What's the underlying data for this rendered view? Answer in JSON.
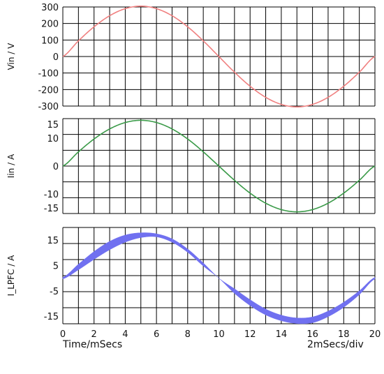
{
  "chart_data": [
    {
      "type": "line",
      "ylabel": "Vin / V",
      "ylim": [
        -300,
        300
      ],
      "yticks": [
        300,
        200,
        100,
        0,
        -100,
        -200,
        -300
      ],
      "xlim": [
        0,
        20
      ],
      "grid": true,
      "series": [
        {
          "color": "#f08080",
          "x": [
            0,
            1,
            2,
            3,
            4,
            5,
            6,
            7,
            8,
            9,
            10,
            11,
            12,
            13,
            14,
            15,
            16,
            17,
            18,
            19,
            20
          ],
          "y": [
            0,
            95,
            180,
            247,
            290,
            305,
            290,
            247,
            180,
            95,
            0,
            -95,
            -180,
            -247,
            -290,
            -305,
            -290,
            -247,
            -180,
            -95,
            0
          ]
        }
      ]
    },
    {
      "type": "line",
      "ylabel": "Iin / A",
      "ylim": [
        -17,
        17
      ],
      "yticks": [
        15,
        10,
        0,
        -10,
        -15
      ],
      "xlim": [
        0,
        20
      ],
      "grid": true,
      "series": [
        {
          "color": "#3a9a48",
          "x": [
            0,
            1,
            2,
            3,
            4,
            5,
            6,
            7,
            8,
            9,
            10,
            11,
            12,
            13,
            14,
            15,
            16,
            17,
            18,
            19,
            20
          ],
          "y": [
            0,
            5.1,
            9.7,
            13.3,
            15.6,
            16.4,
            15.6,
            13.3,
            9.7,
            5.1,
            0,
            -5.1,
            -9.7,
            -13.3,
            -15.6,
            -16.4,
            -15.6,
            -13.3,
            -9.7,
            -5.1,
            0
          ]
        }
      ]
    },
    {
      "type": "area",
      "ylabel": "I_LPFC / A",
      "ylim": [
        -18,
        20
      ],
      "yticks": [
        15,
        5,
        -5,
        -15
      ],
      "xlim": [
        0,
        20
      ],
      "xticks": [
        0,
        2,
        4,
        6,
        8,
        10,
        12,
        14,
        16,
        18,
        20
      ],
      "grid": true,
      "series": [
        {
          "color": "#7070f0",
          "x": [
            0,
            1,
            2,
            3,
            4,
            5,
            6,
            7,
            8,
            9,
            10,
            11,
            12,
            13,
            14,
            15,
            16,
            17,
            18,
            19,
            20
          ],
          "upper": [
            0.3,
            5.5,
            10.5,
            14.5,
            17,
            17.9,
            17.5,
            15.5,
            11.5,
            6,
            0,
            -4.2,
            -8.5,
            -12.2,
            -14.6,
            -15.7,
            -15.3,
            -13,
            -9.5,
            -5,
            0.3
          ],
          "lower": [
            -0.3,
            3.3,
            7.4,
            11.2,
            14.2,
            16,
            16.3,
            14.2,
            10.2,
            4.8,
            0,
            -6,
            -10.8,
            -14.5,
            -16.8,
            -17.9,
            -17.6,
            -15.2,
            -11.5,
            -6.5,
            -0.3
          ]
        }
      ]
    }
  ],
  "footer": {
    "left_label": "Time/mSecs",
    "right_label": "2mSecs/div"
  }
}
